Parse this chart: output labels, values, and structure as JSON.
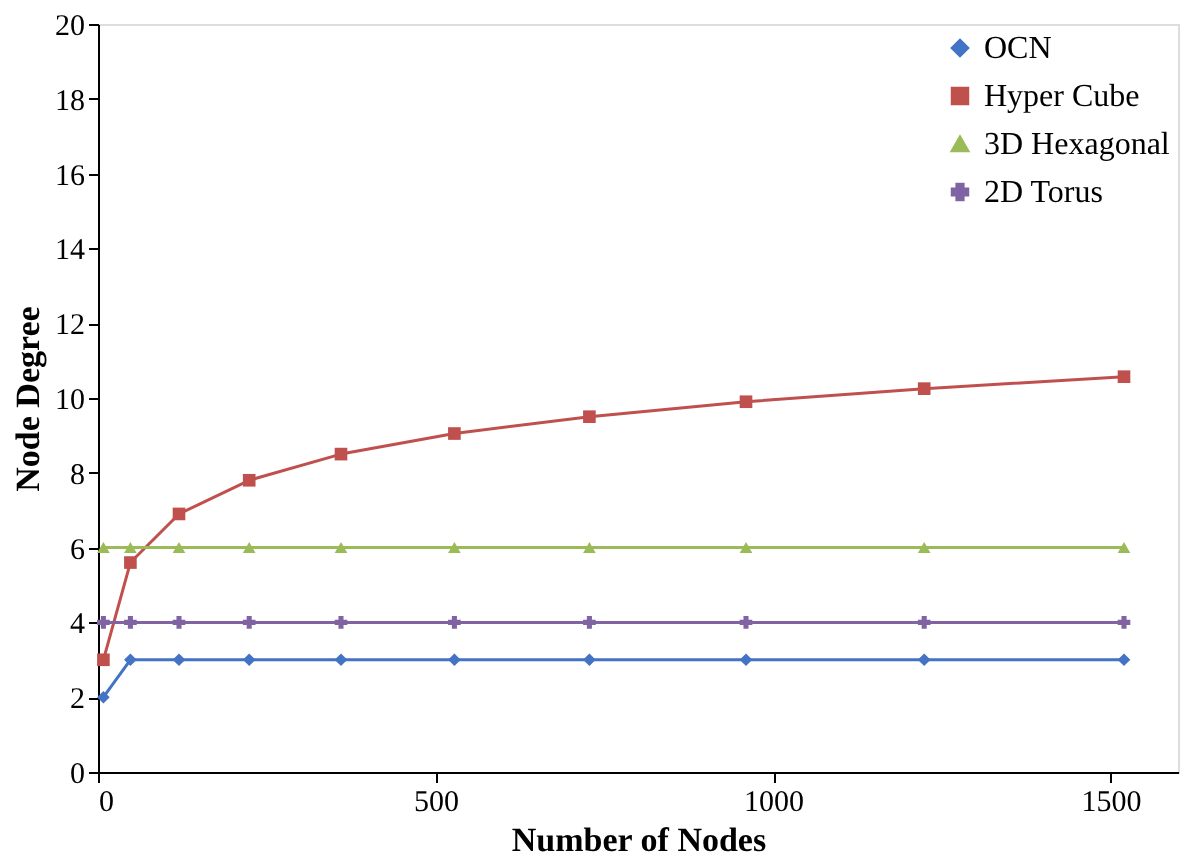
{
  "chart_data": {
    "type": "line",
    "xlabel": "Number of Nodes",
    "ylabel": "Node Degree",
    "x": [
      8,
      48,
      120,
      224,
      360,
      528,
      728,
      960,
      1224,
      1520
    ],
    "series": [
      {
        "name": "OCN",
        "color": "#4472c4",
        "marker": "diamond",
        "values": [
          2,
          3,
          3,
          3,
          3,
          3,
          3,
          3,
          3,
          3
        ]
      },
      {
        "name": "Hyper Cube",
        "color": "#c0504d",
        "marker": "square",
        "values": [
          3,
          5.6,
          6.9,
          7.8,
          8.5,
          9.05,
          9.5,
          9.9,
          10.25,
          10.57
        ]
      },
      {
        "name": "3D Hexagonal",
        "color": "#9bbb59",
        "marker": "triangle",
        "values": [
          6,
          6,
          6,
          6,
          6,
          6,
          6,
          6,
          6,
          6
        ]
      },
      {
        "name": "2D Torus",
        "color": "#8064a2",
        "marker": "cross",
        "values": [
          4,
          4,
          4,
          4,
          4,
          4,
          4,
          4,
          4,
          4
        ]
      }
    ],
    "xlim": [
      0,
      1600
    ],
    "xticks": [
      0,
      500,
      1000,
      1500
    ],
    "ylim": [
      0,
      20
    ],
    "yticks": [
      0,
      2,
      4,
      6,
      8,
      10,
      12,
      14,
      16,
      18,
      20
    ],
    "grid": false,
    "legend": "top right"
  }
}
